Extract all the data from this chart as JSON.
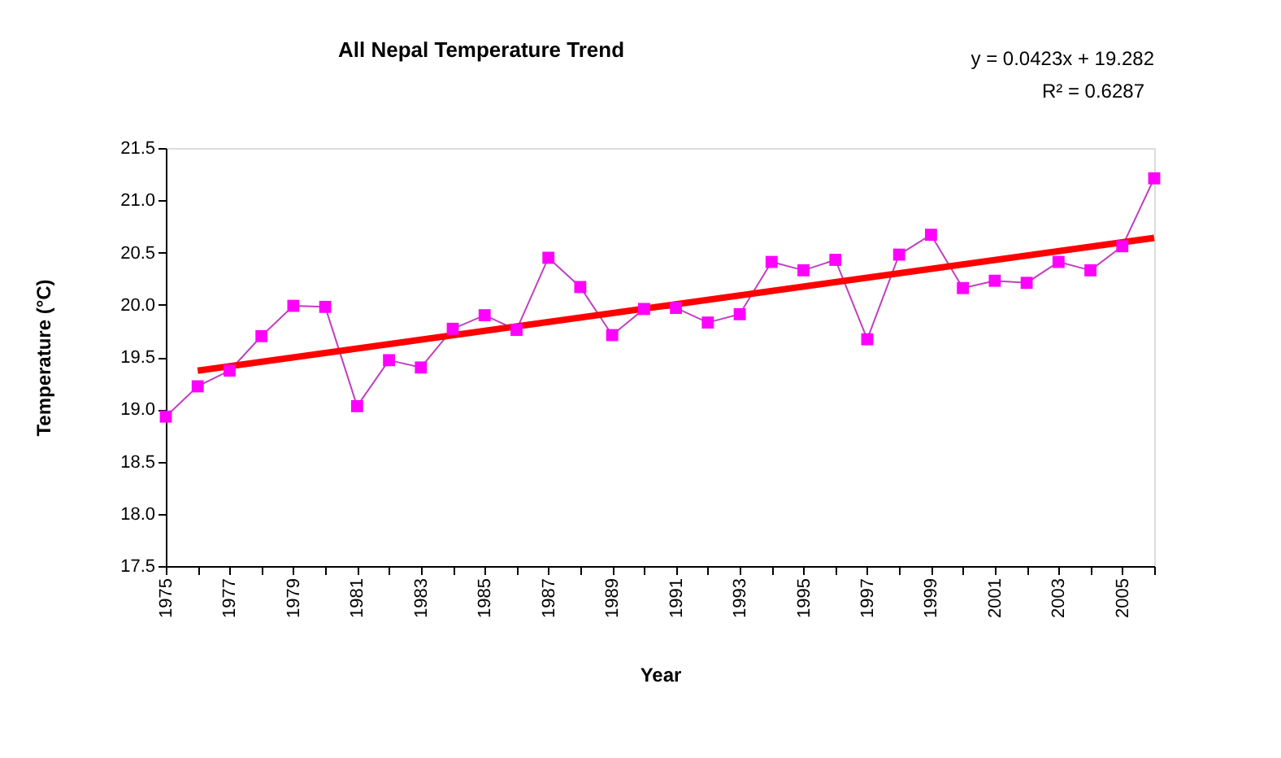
{
  "chart_data": {
    "type": "line",
    "title": "All Nepal Temperature Trend",
    "xlabel": "Year",
    "ylabel": "Temperature (°C)",
    "x": [
      1975,
      1976,
      1977,
      1978,
      1979,
      1980,
      1981,
      1982,
      1983,
      1984,
      1985,
      1986,
      1987,
      1988,
      1989,
      1990,
      1991,
      1992,
      1993,
      1994,
      1995,
      1996,
      1997,
      1998,
      1999,
      2000,
      2001,
      2002,
      2003,
      2004,
      2005,
      2006
    ],
    "series": [
      {
        "color": "#ff00ff",
        "marker": "square",
        "values": [
          18.93,
          19.22,
          19.37,
          19.7,
          19.99,
          19.98,
          19.03,
          19.47,
          19.4,
          19.77,
          19.9,
          19.76,
          20.45,
          20.17,
          19.71,
          19.96,
          19.97,
          19.83,
          19.91,
          20.41,
          20.33,
          20.43,
          19.67,
          20.48,
          20.67,
          20.16,
          20.23,
          20.21,
          20.41,
          20.33,
          20.56,
          21.21
        ]
      },
      {
        "type": "line",
        "color": "#ff0000",
        "marker": "none",
        "x": [
          1976,
          2006
        ],
        "values": [
          19.37,
          20.64
        ]
      }
    ],
    "xlim": [
      1975,
      2006
    ],
    "xticks": [
      1975,
      {
        "value": 1976,
        "label": null
      },
      1977,
      {
        "value": 1978,
        "label": null
      },
      1979,
      {
        "value": 1980,
        "label": null
      },
      1981,
      {
        "value": 1982,
        "label": null
      },
      1983,
      {
        "value": 1984,
        "label": null
      },
      1985,
      {
        "value": 1986,
        "label": null
      },
      1987,
      {
        "value": 1988,
        "label": null
      },
      1989,
      {
        "value": 1990,
        "label": null
      },
      1991,
      {
        "value": 1992,
        "label": null
      },
      1993,
      {
        "value": 1994,
        "label": null
      },
      1995,
      {
        "value": 1996,
        "label": null
      },
      1997,
      {
        "value": 1998,
        "label": null
      },
      1999,
      {
        "value": 2000,
        "label": null
      },
      2001,
      {
        "value": 2002,
        "label": null
      },
      2003,
      {
        "value": 2004,
        "label": null
      },
      2005,
      {
        "value": 2006,
        "label": null
      }
    ],
    "ylim": [
      17.5,
      21.5
    ],
    "yticks": [
      {
        "value": 17.5,
        "label": "17.5"
      },
      {
        "value": 18,
        "label": "18.0"
      },
      {
        "value": 18.5,
        "label": "18.5"
      },
      {
        "value": 19,
        "label": "19.0"
      },
      {
        "value": 19.5,
        "label": "19.5"
      },
      {
        "value": 20,
        "label": "20.0"
      },
      {
        "value": 20.5,
        "label": "20.5"
      },
      {
        "value": 21,
        "label": "21.0"
      },
      {
        "value": 21.5,
        "label": "21.5"
      }
    ],
    "annotations": [
      "y = 0.0423x + 19.282",
      "R² = 0.6287"
    ],
    "grid": false
  }
}
